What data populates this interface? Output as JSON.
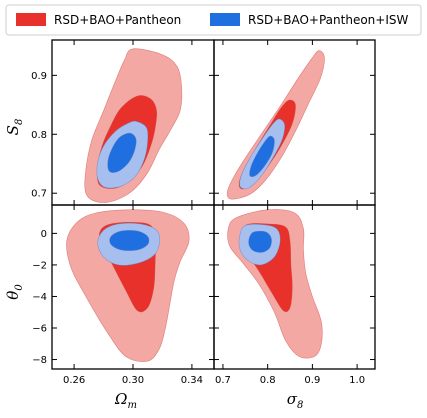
{
  "legend": {
    "entries": [
      {
        "label": "RSD+BAO+Pantheon",
        "color": "#e8312a"
      },
      {
        "label": "RSD+BAO+Pantheon+ISW",
        "color": "#1f6fe0"
      }
    ]
  },
  "chart_data": {
    "type": "corner",
    "parameters": [
      {
        "key": "Omega_m",
        "label": "Ωₘ",
        "display": "Ω",
        "sub": "m",
        "range": [
          0.245,
          0.355
        ],
        "ticks": [
          0.26,
          0.3,
          0.34
        ],
        "tick_labels": [
          "0.26",
          "0.30",
          "0.34"
        ]
      },
      {
        "key": "sigma_8",
        "label": "σ₈",
        "display": "σ",
        "sub": "8",
        "range": [
          0.68,
          1.04
        ],
        "ticks": [
          0.7,
          0.8,
          0.9,
          1.0
        ],
        "tick_labels": [
          "0.7",
          "0.8",
          "0.9",
          "1.0"
        ]
      },
      {
        "key": "S_8",
        "label": "S₈",
        "display": "S",
        "sub": "8",
        "range": [
          0.68,
          0.96
        ],
        "ticks": [
          0.7,
          0.8,
          0.9
        ],
        "tick_labels": [
          "0.7",
          "0.8",
          "0.9"
        ]
      },
      {
        "key": "theta_0",
        "label": "θ₀",
        "display": "θ",
        "sub": "0",
        "range": [
          -8.6,
          1.8
        ],
        "ticks": [
          -8,
          -6,
          -4,
          -2,
          0
        ],
        "tick_labels": [
          "−8",
          "−6",
          "−4",
          "−2",
          "0"
        ]
      }
    ],
    "panels": [
      {
        "name": "Omega_m-vs-S_8",
        "x": "Omega_m",
        "y": "S_8",
        "contours": [
          {
            "series": 0,
            "level": "95%",
            "points": [
              [
                0.3,
                0.945
              ],
              [
                0.32,
                0.935
              ],
              [
                0.33,
                0.915
              ],
              [
                0.333,
                0.88
              ],
              [
                0.332,
                0.84
              ],
              [
                0.325,
                0.805
              ],
              [
                0.318,
                0.775
              ],
              [
                0.31,
                0.735
              ],
              [
                0.3,
                0.705
              ],
              [
                0.288,
                0.688
              ],
              [
                0.276,
                0.685
              ],
              [
                0.268,
                0.7
              ],
              [
                0.268,
                0.74
              ],
              [
                0.272,
                0.79
              ],
              [
                0.28,
                0.84
              ],
              [
                0.288,
                0.89
              ],
              [
                0.294,
                0.925
              ]
            ]
          },
          {
            "series": 0,
            "level": "68%",
            "points": [
              [
                0.303,
                0.865
              ],
              [
                0.312,
                0.86
              ],
              [
                0.316,
                0.84
              ],
              [
                0.315,
                0.81
              ],
              [
                0.312,
                0.78
              ],
              [
                0.306,
                0.745
              ],
              [
                0.296,
                0.718
              ],
              [
                0.286,
                0.708
              ],
              [
                0.277,
                0.715
              ],
              [
                0.276,
                0.745
              ],
              [
                0.279,
                0.78
              ],
              [
                0.285,
                0.815
              ],
              [
                0.292,
                0.845
              ]
            ]
          },
          {
            "series": 1,
            "level": "95%",
            "points": [
              [
                0.302,
                0.822
              ],
              [
                0.309,
                0.812
              ],
              [
                0.31,
                0.79
              ],
              [
                0.308,
                0.76
              ],
              [
                0.302,
                0.73
              ],
              [
                0.292,
                0.712
              ],
              [
                0.281,
                0.71
              ],
              [
                0.276,
                0.725
              ],
              [
                0.276,
                0.752
              ],
              [
                0.28,
                0.78
              ],
              [
                0.288,
                0.805
              ],
              [
                0.296,
                0.818
              ]
            ]
          },
          {
            "series": 1,
            "level": "68%",
            "points": [
              [
                0.298,
                0.802
              ],
              [
                0.302,
                0.792
              ],
              [
                0.301,
                0.772
              ],
              [
                0.297,
                0.752
              ],
              [
                0.29,
                0.737
              ],
              [
                0.284,
                0.737
              ],
              [
                0.283,
                0.755
              ],
              [
                0.286,
                0.777
              ],
              [
                0.291,
                0.795
              ]
            ]
          }
        ]
      },
      {
        "name": "sigma_8-vs-S_8",
        "x": "sigma_8",
        "y": "S_8",
        "contours": [
          {
            "series": 0,
            "level": "95%",
            "points": [
              [
                0.915,
                0.942
              ],
              [
                0.927,
                0.93
              ],
              [
                0.918,
                0.895
              ],
              [
                0.89,
                0.85
              ],
              [
                0.862,
                0.805
              ],
              [
                0.83,
                0.76
              ],
              [
                0.795,
                0.722
              ],
              [
                0.76,
                0.698
              ],
              [
                0.718,
                0.69
              ],
              [
                0.71,
                0.703
              ],
              [
                0.726,
                0.73
              ],
              [
                0.752,
                0.762
              ],
              [
                0.79,
                0.805
              ],
              [
                0.83,
                0.85
              ],
              [
                0.868,
                0.895
              ],
              [
                0.9,
                0.93
              ]
            ]
          },
          {
            "series": 0,
            "level": "68%",
            "points": [
              [
                0.848,
                0.858
              ],
              [
                0.862,
                0.85
              ],
              [
                0.855,
                0.818
              ],
              [
                0.83,
                0.78
              ],
              [
                0.8,
                0.745
              ],
              [
                0.77,
                0.718
              ],
              [
                0.745,
                0.707
              ],
              [
                0.736,
                0.716
              ],
              [
                0.748,
                0.742
              ],
              [
                0.775,
                0.778
              ],
              [
                0.805,
                0.815
              ],
              [
                0.83,
                0.845
              ]
            ]
          },
          {
            "series": 1,
            "level": "95%",
            "points": [
              [
                0.826,
                0.826
              ],
              [
                0.838,
                0.816
              ],
              [
                0.832,
                0.79
              ],
              [
                0.808,
                0.755
              ],
              [
                0.78,
                0.724
              ],
              [
                0.755,
                0.708
              ],
              [
                0.738,
                0.712
              ],
              [
                0.742,
                0.732
              ],
              [
                0.762,
                0.762
              ],
              [
                0.79,
                0.795
              ],
              [
                0.812,
                0.818
              ]
            ]
          },
          {
            "series": 1,
            "level": "68%",
            "points": [
              [
                0.806,
                0.797
              ],
              [
                0.815,
                0.79
              ],
              [
                0.81,
                0.768
              ],
              [
                0.792,
                0.745
              ],
              [
                0.773,
                0.73
              ],
              [
                0.76,
                0.73
              ],
              [
                0.764,
                0.748
              ],
              [
                0.78,
                0.772
              ],
              [
                0.796,
                0.79
              ]
            ]
          }
        ]
      },
      {
        "name": "Omega_m-vs-theta_0",
        "x": "Omega_m",
        "y": "theta_0",
        "contours": [
          {
            "series": 0,
            "level": "95%",
            "points": [
              [
                0.275,
                1.3
              ],
              [
                0.3,
                1.5
              ],
              [
                0.322,
                1.3
              ],
              [
                0.335,
                0.6
              ],
              [
                0.338,
                -0.5
              ],
              [
                0.332,
                -1.8
              ],
              [
                0.328,
                -3.0
              ],
              [
                0.325,
                -4.5
              ],
              [
                0.322,
                -6.0
              ],
              [
                0.318,
                -7.3
              ],
              [
                0.31,
                -8.1
              ],
              [
                0.295,
                -7.8
              ],
              [
                0.282,
                -6.2
              ],
              [
                0.268,
                -4.0
              ],
              [
                0.258,
                -2.2
              ],
              [
                0.255,
                -0.5
              ],
              [
                0.262,
                0.7
              ]
            ]
          },
          {
            "series": 0,
            "level": "68%",
            "points": [
              [
                0.285,
                0.6
              ],
              [
                0.3,
                0.7
              ],
              [
                0.312,
                0.5
              ],
              [
                0.315,
                -0.5
              ],
              [
                0.315,
                -2.0
              ],
              [
                0.314,
                -3.5
              ],
              [
                0.31,
                -4.7
              ],
              [
                0.303,
                -4.9
              ],
              [
                0.295,
                -3.6
              ],
              [
                0.285,
                -1.8
              ],
              [
                0.278,
                -0.6
              ],
              [
                0.278,
                0.2
              ]
            ]
          },
          {
            "series": 1,
            "level": "95%",
            "points": [
              [
                0.29,
                0.6
              ],
              [
                0.305,
                0.6
              ],
              [
                0.316,
                0.2
              ],
              [
                0.318,
                -0.6
              ],
              [
                0.314,
                -1.4
              ],
              [
                0.303,
                -1.9
              ],
              [
                0.29,
                -2.0
              ],
              [
                0.28,
                -1.5
              ],
              [
                0.276,
                -0.6
              ],
              [
                0.28,
                0.2
              ]
            ]
          },
          {
            "series": 1,
            "level": "68%",
            "points": [
              [
                0.292,
                0.15
              ],
              [
                0.303,
                0.15
              ],
              [
                0.31,
                -0.2
              ],
              [
                0.31,
                -0.7
              ],
              [
                0.303,
                -1.05
              ],
              [
                0.292,
                -1.05
              ],
              [
                0.285,
                -0.7
              ],
              [
                0.285,
                -0.2
              ]
            ]
          }
        ]
      },
      {
        "name": "sigma_8-vs-theta_0",
        "x": "sigma_8",
        "y": "theta_0",
        "contours": [
          {
            "series": 0,
            "level": "95%",
            "points": [
              [
                0.73,
                1.0
              ],
              [
                0.8,
                1.5
              ],
              [
                0.86,
                1.3
              ],
              [
                0.88,
                0.3
              ],
              [
                0.88,
                -1.0
              ],
              [
                0.885,
                -2.5
              ],
              [
                0.9,
                -4.0
              ],
              [
                0.92,
                -5.6
              ],
              [
                0.92,
                -7.0
              ],
              [
                0.905,
                -7.8
              ],
              [
                0.87,
                -7.8
              ],
              [
                0.84,
                -6.8
              ],
              [
                0.815,
                -5.0
              ],
              [
                0.78,
                -3.2
              ],
              [
                0.745,
                -1.9
              ],
              [
                0.715,
                -0.8
              ],
              [
                0.712,
                0.3
              ]
            ]
          },
          {
            "series": 0,
            "level": "68%",
            "points": [
              [
                0.75,
                0.5
              ],
              [
                0.8,
                0.6
              ],
              [
                0.84,
                0.4
              ],
              [
                0.85,
                -0.5
              ],
              [
                0.852,
                -2.0
              ],
              [
                0.855,
                -3.4
              ],
              [
                0.85,
                -4.7
              ],
              [
                0.835,
                -4.9
              ],
              [
                0.81,
                -3.8
              ],
              [
                0.785,
                -2.6
              ],
              [
                0.76,
                -1.5
              ],
              [
                0.742,
                -0.6
              ]
            ]
          },
          {
            "series": 1,
            "level": "95%",
            "points": [
              [
                0.75,
                0.5
              ],
              [
                0.79,
                0.55
              ],
              [
                0.82,
                0.3
              ],
              [
                0.828,
                -0.5
              ],
              [
                0.815,
                -1.5
              ],
              [
                0.785,
                -2.0
              ],
              [
                0.755,
                -1.7
              ],
              [
                0.738,
                -1.0
              ],
              [
                0.738,
                -0.1
              ]
            ]
          },
          {
            "series": 1,
            "level": "68%",
            "points": [
              [
                0.77,
                0.1
              ],
              [
                0.795,
                0.1
              ],
              [
                0.808,
                -0.3
              ],
              [
                0.805,
                -0.9
              ],
              [
                0.788,
                -1.2
              ],
              [
                0.768,
                -1.1
              ],
              [
                0.758,
                -0.7
              ],
              [
                0.76,
                -0.2
              ]
            ]
          }
        ]
      }
    ],
    "series_styles": [
      {
        "name": "RSD+BAO+Pantheon",
        "outer": "#f4a8a3",
        "inner": "#e8312a",
        "edge": "#c94a44"
      },
      {
        "name": "RSD+BAO+Pantheon+ISW",
        "outer": "#a7bfee",
        "inner": "#1f6fe0",
        "edge": "#5a7fc8"
      }
    ]
  }
}
